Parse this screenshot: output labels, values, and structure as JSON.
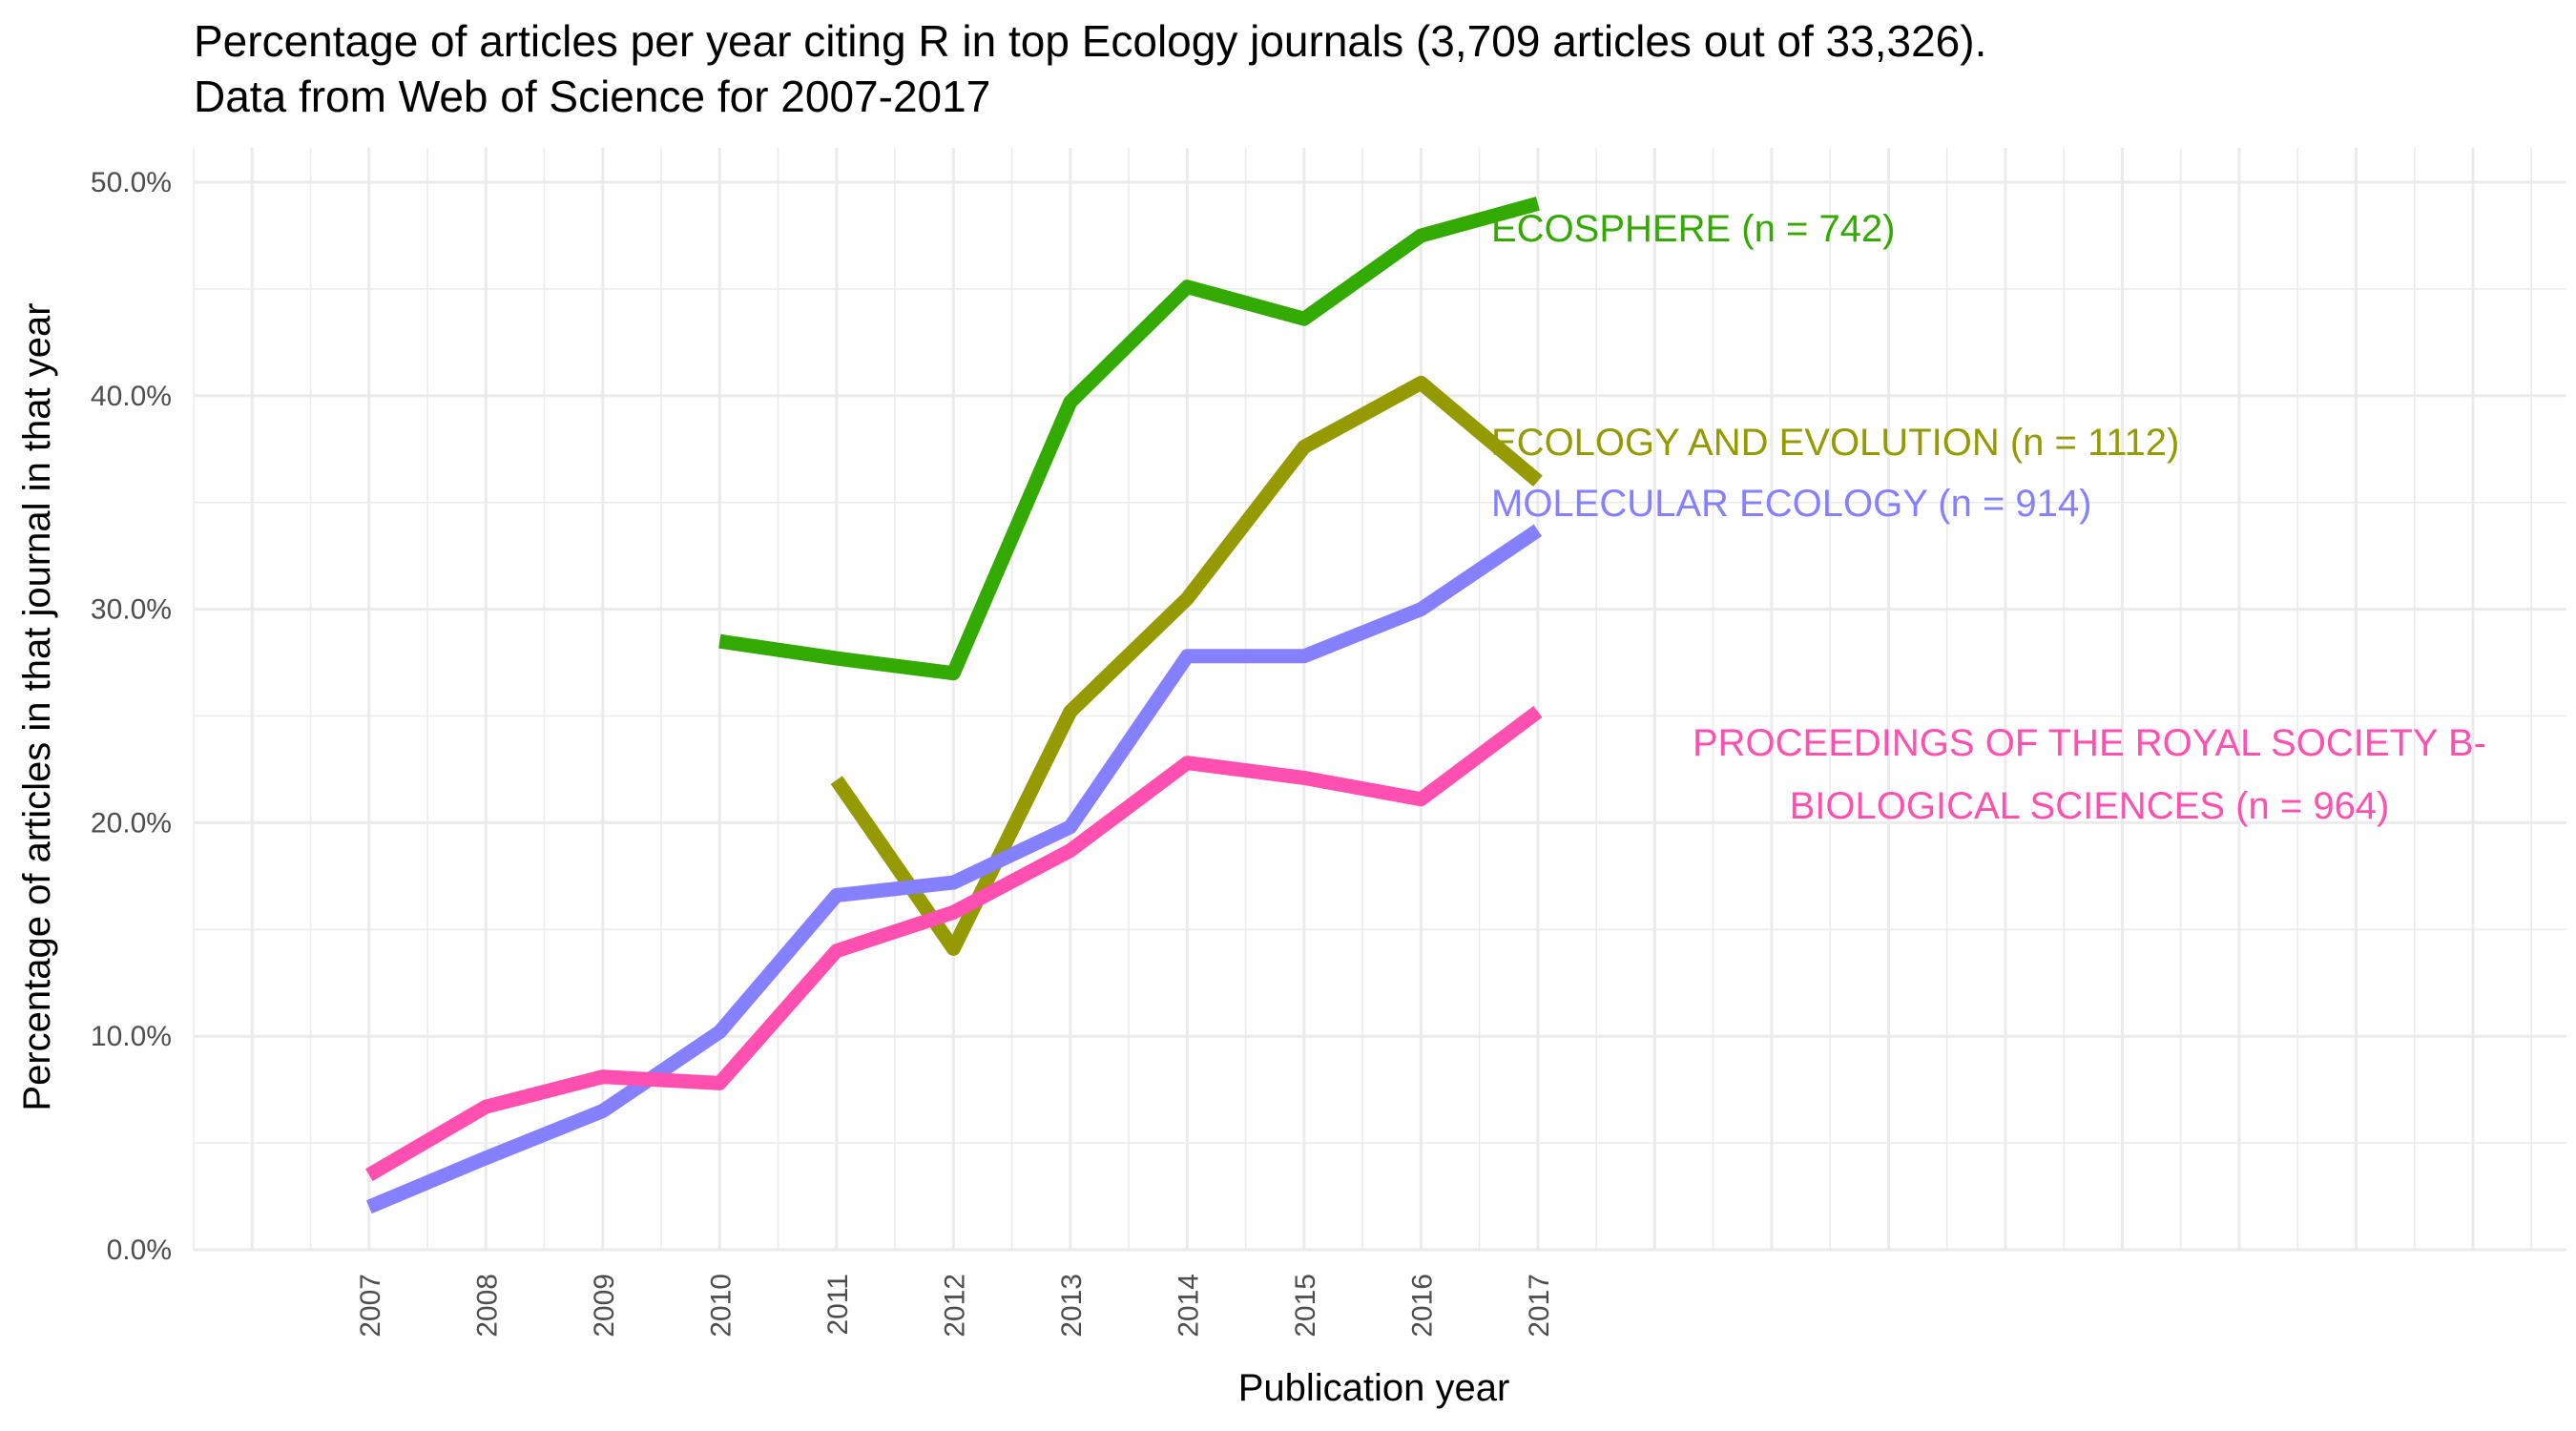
{
  "chart_data": {
    "type": "line",
    "title": [
      "Percentage of articles per year citing R in top Ecology journals (3,709 articles out of 33,326).",
      "Data from Web of Science for 2007-2017"
    ],
    "xlabel": "Publication year",
    "ylabel": "Percentage of articles in that journal in that year",
    "x_ticks": [
      "2007",
      "2008",
      "2009",
      "2010",
      "2011",
      "2012",
      "2013",
      "2014",
      "2015",
      "2016",
      "2017"
    ],
    "x_range": [
      2005.5,
      2025.8
    ],
    "y_ticks": [
      "0.0%",
      "10.0%",
      "20.0%",
      "30.0%",
      "40.0%",
      "50.0%"
    ],
    "ylim": [
      0,
      50
    ],
    "grid": true,
    "legend": "direct labels at right end of lines",
    "series": [
      {
        "name": "ECOSPHERE (n = 742)",
        "color": "#33AA00",
        "x": [
          2010,
          2011,
          2012,
          2013,
          2014,
          2015,
          2016,
          2017
        ],
        "values": [
          28.5,
          27.7,
          27.0,
          39.7,
          45.1,
          43.6,
          47.5,
          49.0
        ]
      },
      {
        "name": "ECOLOGY AND EVOLUTION (n = 1112)",
        "color": "#949A00",
        "x": [
          2011,
          2012,
          2013,
          2014,
          2015,
          2016,
          2017
        ],
        "values": [
          22.0,
          14.1,
          25.2,
          30.5,
          37.6,
          40.6,
          36.0
        ]
      },
      {
        "name": "MOLECULAR ECOLOGY (n = 914)",
        "color": "#8580FF",
        "x": [
          2007,
          2008,
          2009,
          2010,
          2011,
          2012,
          2013,
          2014,
          2015,
          2016,
          2017
        ],
        "values": [
          2.0,
          4.3,
          6.5,
          10.2,
          16.6,
          17.2,
          19.8,
          27.8,
          27.8,
          30.0,
          33.7
        ]
      },
      {
        "name": "PROCEEDINGS OF THE ROYAL SOCIETY B-\nBIOLOGICAL SCIENCES (n = 964)",
        "name_lines": [
          "PROCEEDINGS OF THE ROYAL SOCIETY B-",
          "BIOLOGICAL SCIENCES (n = 964)"
        ],
        "color": "#FF4FB0",
        "x": [
          2007,
          2008,
          2009,
          2010,
          2011,
          2012,
          2013,
          2014,
          2015,
          2016,
          2017
        ],
        "values": [
          3.5,
          6.7,
          8.1,
          7.8,
          14.0,
          15.8,
          18.7,
          22.8,
          22.1,
          21.1,
          25.2
        ]
      }
    ]
  }
}
